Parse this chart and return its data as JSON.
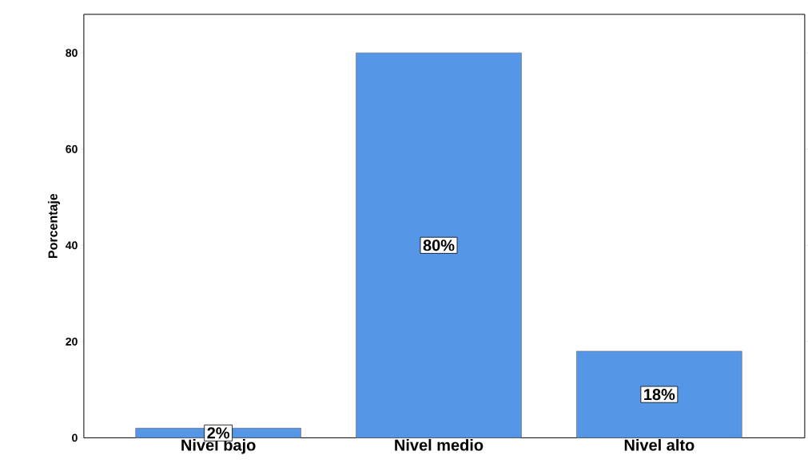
{
  "chart_data": {
    "type": "bar",
    "ylabel": "Porcentaje",
    "categories": [
      "Nivel bajo",
      "Nivel medio",
      "Nivel alto"
    ],
    "values": [
      2,
      80,
      18
    ],
    "value_labels": [
      "2%",
      "80%",
      "18%"
    ],
    "color": "#5596e6",
    "ylim": [
      0,
      88
    ],
    "yticks": [
      0,
      20,
      40,
      60,
      80
    ]
  }
}
